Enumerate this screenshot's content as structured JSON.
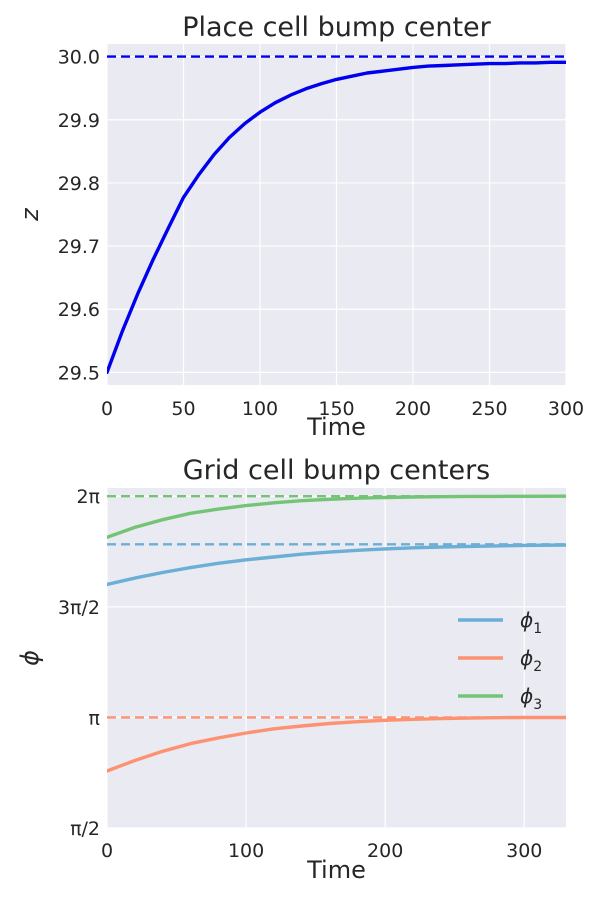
{
  "chart_data": [
    {
      "type": "line",
      "title": "Place cell bump center",
      "xlabel": "Time",
      "ylabel": "z",
      "xlim": [
        0,
        300
      ],
      "ylim": [
        29.48,
        30.02
      ],
      "xticks": [
        0,
        50,
        100,
        150,
        200,
        250,
        300
      ],
      "xtick_labels": [
        "0",
        "50",
        "100",
        "150",
        "200",
        "250",
        "300"
      ],
      "yticks": [
        29.5,
        29.6,
        29.7,
        29.8,
        29.9,
        30.0
      ],
      "ytick_labels": [
        "29.5",
        "29.6",
        "29.7",
        "29.8",
        "29.9",
        "30.0"
      ],
      "grid": true,
      "series": [
        {
          "color": "#0000ee",
          "style": "solid",
          "x": [
            0,
            10,
            20,
            30,
            40,
            50,
            60,
            70,
            80,
            90,
            100,
            110,
            120,
            130,
            140,
            150,
            160,
            170,
            180,
            190,
            200,
            210,
            220,
            230,
            240,
            250,
            260,
            270,
            280,
            290,
            300
          ],
          "values": [
            29.5,
            29.565,
            29.624,
            29.678,
            29.728,
            29.777,
            29.813,
            29.845,
            29.872,
            29.894,
            29.912,
            29.927,
            29.939,
            29.949,
            29.957,
            29.964,
            29.969,
            29.974,
            29.977,
            29.98,
            29.983,
            29.985,
            29.986,
            29.987,
            29.988,
            29.989,
            29.989,
            29.99,
            29.99,
            29.991,
            29.991
          ]
        },
        {
          "color": "#0000ee",
          "style": "dashed",
          "x": [
            0,
            300
          ],
          "values": [
            30.0,
            30.0
          ]
        }
      ]
    },
    {
      "type": "line",
      "title": "Grid cell bump centers",
      "xlabel": "Time",
      "ylabel": "ϕ",
      "xlim": [
        0,
        330
      ],
      "ylim": [
        1.5708,
        6.4
      ],
      "xticks": [
        0,
        100,
        200,
        300
      ],
      "xtick_labels": [
        "0",
        "100",
        "200",
        "300"
      ],
      "yticks": [
        1.5708,
        3.14159,
        4.71239,
        6.28319
      ],
      "ytick_labels": [
        "π/2",
        "π",
        "3π/2",
        "2π"
      ],
      "grid": true,
      "legend": "center-right",
      "series": [
        {
          "name": "ϕ1",
          "color": "#6baed6",
          "x": [
            0,
            20,
            40,
            60,
            80,
            100,
            120,
            140,
            160,
            180,
            200,
            220,
            240,
            260,
            280,
            300,
            330
          ],
          "values": [
            5.03,
            5.12,
            5.2,
            5.27,
            5.33,
            5.38,
            5.42,
            5.46,
            5.49,
            5.515,
            5.535,
            5.55,
            5.56,
            5.57,
            5.578,
            5.585,
            5.59
          ]
        },
        {
          "name": "ϕ2",
          "color": "#fc9272",
          "x": [
            0,
            20,
            40,
            60,
            80,
            100,
            120,
            140,
            160,
            180,
            200,
            220,
            240,
            260,
            280,
            300,
            330
          ],
          "values": [
            2.38,
            2.53,
            2.66,
            2.77,
            2.85,
            2.92,
            2.98,
            3.02,
            3.055,
            3.08,
            3.1,
            3.115,
            3.125,
            3.132,
            3.137,
            3.14,
            3.141
          ]
        },
        {
          "name": "ϕ3",
          "color": "#74c476",
          "x": [
            0,
            20,
            40,
            60,
            80,
            100,
            120,
            140,
            160,
            180,
            200,
            220,
            240,
            260,
            280,
            300,
            330
          ],
          "values": [
            5.7,
            5.84,
            5.95,
            6.04,
            6.1,
            6.15,
            6.19,
            6.22,
            6.24,
            6.255,
            6.265,
            6.272,
            6.277,
            6.28,
            6.281,
            6.282,
            6.283
          ]
        }
      ],
      "reference_lines": [
        {
          "color": "#6baed6",
          "value": 5.6
        },
        {
          "color": "#fc9272",
          "value": 3.14159
        },
        {
          "color": "#74c476",
          "value": 6.28319
        }
      ]
    }
  ]
}
